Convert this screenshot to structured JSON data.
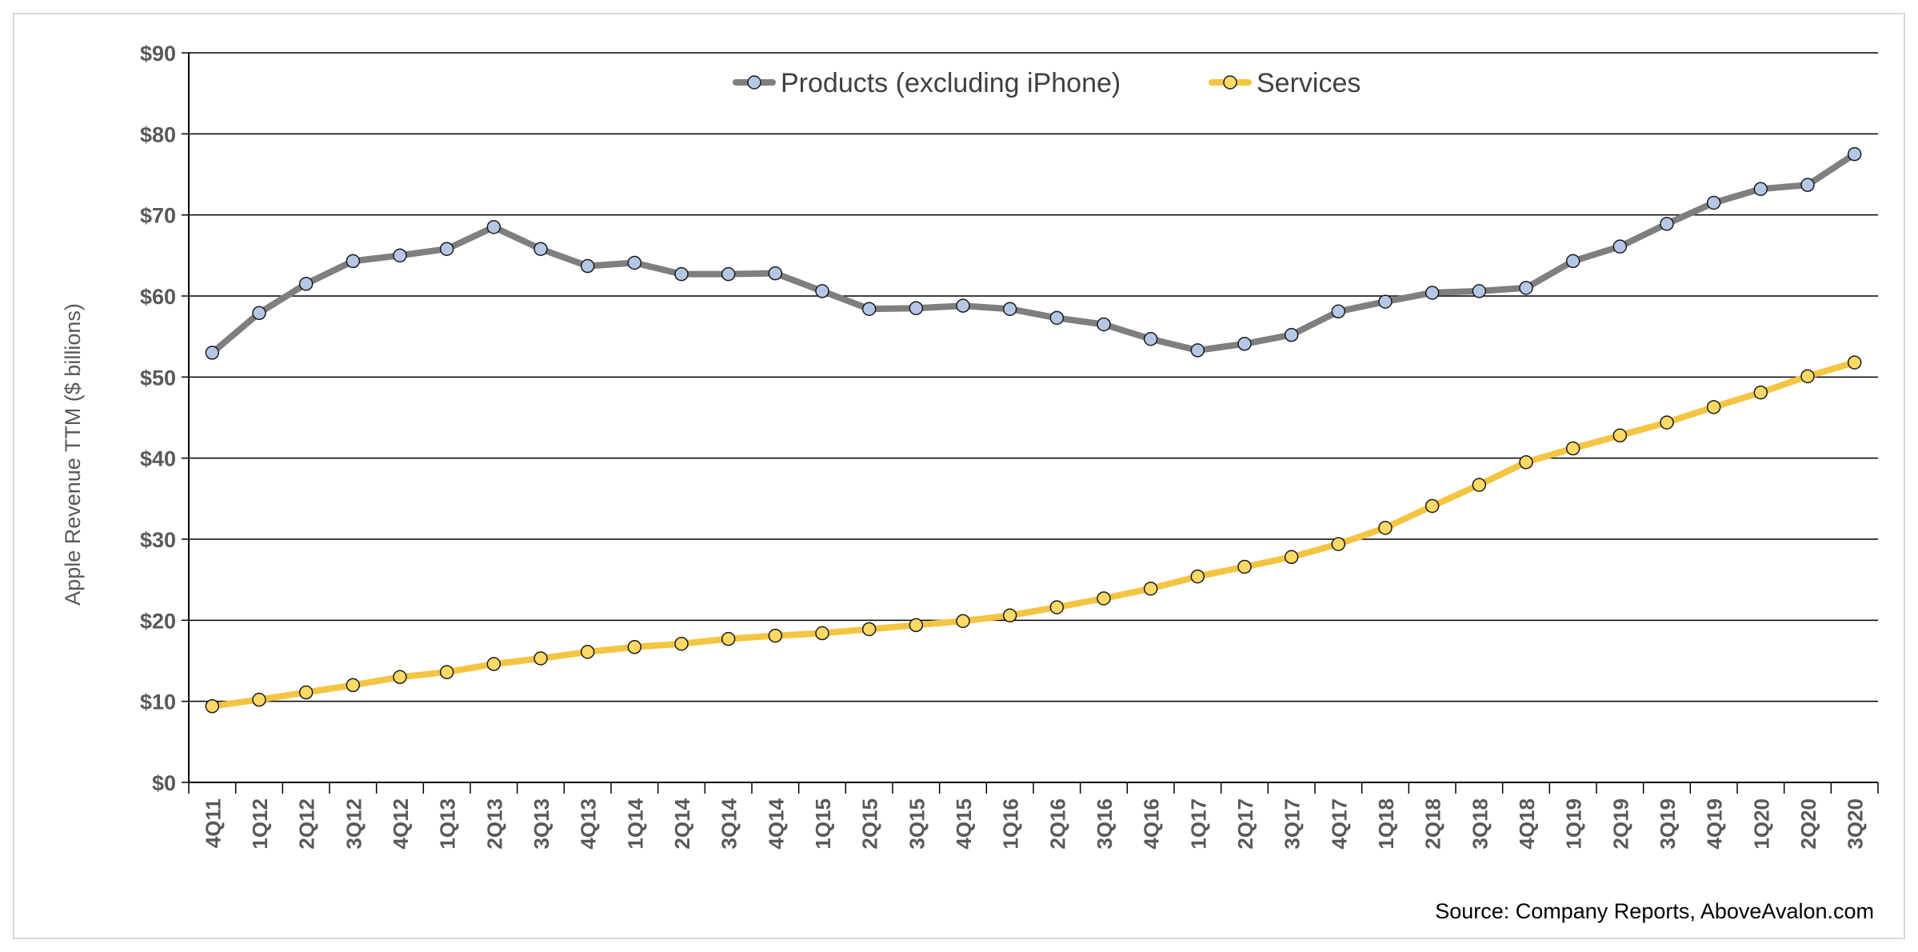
{
  "chart_data": {
    "type": "line",
    "ylabel": "Apple Revenue TTM ($ billions)",
    "xlabel": "",
    "ylim": [
      0,
      90
    ],
    "y_ticks": [
      "$0",
      "$10",
      "$20",
      "$30",
      "$40",
      "$50",
      "$60",
      "$70",
      "$80",
      "$90"
    ],
    "grid": true,
    "legend_position": "top-center",
    "categories": [
      "4Q11",
      "1Q12",
      "2Q12",
      "3Q12",
      "4Q12",
      "1Q13",
      "2Q13",
      "3Q13",
      "4Q13",
      "1Q14",
      "2Q14",
      "3Q14",
      "4Q14",
      "1Q15",
      "2Q15",
      "3Q15",
      "4Q15",
      "1Q16",
      "2Q16",
      "3Q16",
      "4Q16",
      "1Q17",
      "2Q17",
      "3Q17",
      "4Q17",
      "1Q18",
      "2Q18",
      "3Q18",
      "4Q18",
      "1Q19",
      "2Q19",
      "3Q19",
      "4Q19",
      "1Q20",
      "2Q20",
      "3Q20"
    ],
    "series": [
      {
        "name": "Products (excluding iPhone)",
        "line_color": "#7f7f7f",
        "marker_color": "#b4c7e7",
        "values": [
          53.0,
          57.9,
          61.5,
          64.3,
          65.0,
          65.8,
          68.5,
          65.8,
          63.7,
          64.1,
          62.7,
          62.7,
          62.8,
          60.6,
          58.4,
          58.5,
          58.8,
          58.4,
          57.3,
          56.5,
          54.7,
          53.3,
          54.1,
          55.2,
          58.1,
          59.3,
          60.4,
          60.6,
          61.0,
          64.3,
          66.1,
          68.9,
          71.5,
          73.2,
          73.7,
          77.5
        ]
      },
      {
        "name": "Services",
        "line_color": "#f4c542",
        "marker_color": "#ffd966",
        "values": [
          9.4,
          10.2,
          11.1,
          12.0,
          13.0,
          13.6,
          14.6,
          15.3,
          16.1,
          16.7,
          17.1,
          17.7,
          18.1,
          18.4,
          18.9,
          19.4,
          19.9,
          20.6,
          21.6,
          22.7,
          23.9,
          25.4,
          26.6,
          27.8,
          29.4,
          31.4,
          34.1,
          36.7,
          39.5,
          41.2,
          42.8,
          44.4,
          46.3,
          48.1,
          50.1,
          51.8
        ]
      }
    ],
    "source": "Source: Company Reports, AboveAvalon.com"
  }
}
